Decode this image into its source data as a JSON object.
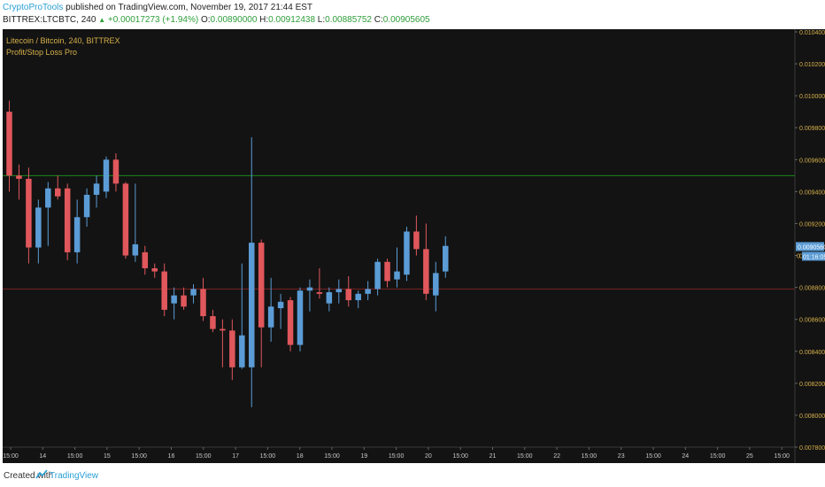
{
  "header": {
    "author": "CryptoProTools",
    "published_text": "published on TradingView.com, November 19, 2017 21:44 EST",
    "symbol": "BITTREX:LTCBTC, 240",
    "change": "+0.00017273 (+1.94%)",
    "ohlc": [
      {
        "label": "O:",
        "value": "0.00890000"
      },
      {
        "label": "H:",
        "value": "0.00912438"
      },
      {
        "label": "L:",
        "value": "0.00885752"
      },
      {
        "label": "C:",
        "value": "0.00905605"
      }
    ]
  },
  "legend": {
    "title": "Litecoin / Bitcoin, 240, BITTREX",
    "indicator": "Profit/Stop Loss Pro"
  },
  "footer": {
    "created_with": "Created with",
    "brand": "TradingView"
  },
  "colors": {
    "background": "#131313",
    "up": "#5b9cd6",
    "down": "#e0575c",
    "green_line": "#1a8a1a",
    "red_line": "#7a2323",
    "axis_text": "#d6b04a",
    "x_text": "#c8c8c8"
  },
  "chart_data": {
    "type": "candlestick",
    "title": "Litecoin / Bitcoin, 240, BITTREX",
    "ylim": [
      0.0078,
      0.0104
    ],
    "y_ticks": [
      "0.01040000",
      "0.01020000",
      "0.01000000",
      "0.00980000",
      "0.00960000",
      "0.00940000",
      "0.00920000",
      "0.00900000",
      "0.00880000",
      "0.00860000",
      "0.00840000",
      "0.00820000",
      "0.00800000",
      "0.00780000"
    ],
    "x_ticks": [
      "15:00",
      "14",
      "15:00",
      "15",
      "15:00",
      "16",
      "15:00",
      "17",
      "15:00",
      "18",
      "15:00",
      "19",
      "15:00",
      "20",
      "15:00",
      "21",
      "15:00",
      "22",
      "15:00",
      "23",
      "15:00",
      "24",
      "15:00",
      "25",
      "15:00"
    ],
    "last_price_label": "0.00905605",
    "countdown_label": "01:16:05",
    "hidden_label": "0",
    "levels": [
      {
        "name": "green",
        "value": 0.0095
      },
      {
        "name": "red",
        "value": 0.00879
      }
    ],
    "candles": [
      {
        "o": 0.0099,
        "h": 0.00997,
        "l": 0.0094,
        "c": 0.0095
      },
      {
        "o": 0.0095,
        "h": 0.00957,
        "l": 0.00935,
        "c": 0.00948
      },
      {
        "o": 0.00948,
        "h": 0.00955,
        "l": 0.00895,
        "c": 0.00905
      },
      {
        "o": 0.00905,
        "h": 0.00935,
        "l": 0.00895,
        "c": 0.0093
      },
      {
        "o": 0.0093,
        "h": 0.00946,
        "l": 0.00906,
        "c": 0.00942
      },
      {
        "o": 0.00942,
        "h": 0.0095,
        "l": 0.00935,
        "c": 0.00937
      },
      {
        "o": 0.00942,
        "h": 0.00945,
        "l": 0.00897,
        "c": 0.00902
      },
      {
        "o": 0.00902,
        "h": 0.00935,
        "l": 0.00895,
        "c": 0.00924
      },
      {
        "o": 0.00924,
        "h": 0.00942,
        "l": 0.00918,
        "c": 0.00938
      },
      {
        "o": 0.00938,
        "h": 0.0095,
        "l": 0.0093,
        "c": 0.00945
      },
      {
        "o": 0.0094,
        "h": 0.00962,
        "l": 0.00936,
        "c": 0.0096
      },
      {
        "o": 0.0096,
        "h": 0.00964,
        "l": 0.0094,
        "c": 0.00945
      },
      {
        "o": 0.00945,
        "h": 0.00946,
        "l": 0.00898,
        "c": 0.009
      },
      {
        "o": 0.009,
        "h": 0.00945,
        "l": 0.00896,
        "c": 0.00907
      },
      {
        "o": 0.00902,
        "h": 0.00906,
        "l": 0.00888,
        "c": 0.00892
      },
      {
        "o": 0.00892,
        "h": 0.00895,
        "l": 0.00886,
        "c": 0.0089
      },
      {
        "o": 0.0089,
        "h": 0.00895,
        "l": 0.00862,
        "c": 0.00866
      },
      {
        "o": 0.0087,
        "h": 0.0088,
        "l": 0.0086,
        "c": 0.00875
      },
      {
        "o": 0.00875,
        "h": 0.0088,
        "l": 0.00866,
        "c": 0.00868
      },
      {
        "o": 0.00875,
        "h": 0.00882,
        "l": 0.0087,
        "c": 0.00879
      },
      {
        "o": 0.00879,
        "h": 0.00886,
        "l": 0.00859,
        "c": 0.00862
      },
      {
        "o": 0.00862,
        "h": 0.00866,
        "l": 0.00852,
        "c": 0.00854
      },
      {
        "o": 0.00854,
        "h": 0.0086,
        "l": 0.0083,
        "c": 0.00853
      },
      {
        "o": 0.00853,
        "h": 0.0086,
        "l": 0.00822,
        "c": 0.0083
      },
      {
        "o": 0.0083,
        "h": 0.00895,
        "l": 0.00829,
        "c": 0.0085
      },
      {
        "o": 0.0083,
        "h": 0.00974,
        "l": 0.00805,
        "c": 0.00908
      },
      {
        "o": 0.00908,
        "h": 0.0091,
        "l": 0.0083,
        "c": 0.00855
      },
      {
        "o": 0.00855,
        "h": 0.00886,
        "l": 0.00846,
        "c": 0.00868
      },
      {
        "o": 0.00867,
        "h": 0.00876,
        "l": 0.00854,
        "c": 0.00871
      },
      {
        "o": 0.00872,
        "h": 0.00874,
        "l": 0.0084,
        "c": 0.00844
      },
      {
        "o": 0.00844,
        "h": 0.0088,
        "l": 0.0084,
        "c": 0.00878
      },
      {
        "o": 0.00878,
        "h": 0.00885,
        "l": 0.00865,
        "c": 0.0088
      },
      {
        "o": 0.00877,
        "h": 0.00892,
        "l": 0.00873,
        "c": 0.00876
      },
      {
        "o": 0.0087,
        "h": 0.0088,
        "l": 0.00865,
        "c": 0.00877
      },
      {
        "o": 0.00877,
        "h": 0.00885,
        "l": 0.0087,
        "c": 0.00879
      },
      {
        "o": 0.00879,
        "h": 0.00887,
        "l": 0.00868,
        "c": 0.00872
      },
      {
        "o": 0.00872,
        "h": 0.00878,
        "l": 0.00867,
        "c": 0.00876
      },
      {
        "o": 0.00876,
        "h": 0.00884,
        "l": 0.00872,
        "c": 0.00879
      },
      {
        "o": 0.00879,
        "h": 0.00898,
        "l": 0.00875,
        "c": 0.00896
      },
      {
        "o": 0.00896,
        "h": 0.00898,
        "l": 0.0088,
        "c": 0.00884
      },
      {
        "o": 0.00885,
        "h": 0.00905,
        "l": 0.0088,
        "c": 0.0089
      },
      {
        "o": 0.00888,
        "h": 0.00918,
        "l": 0.00884,
        "c": 0.00915
      },
      {
        "o": 0.00915,
        "h": 0.00925,
        "l": 0.009,
        "c": 0.00904
      },
      {
        "o": 0.00904,
        "h": 0.0092,
        "l": 0.00872,
        "c": 0.00876
      },
      {
        "o": 0.00875,
        "h": 0.00896,
        "l": 0.00865,
        "c": 0.00889
      },
      {
        "o": 0.0089,
        "h": 0.00912,
        "l": 0.00886,
        "c": 0.00906
      }
    ]
  }
}
